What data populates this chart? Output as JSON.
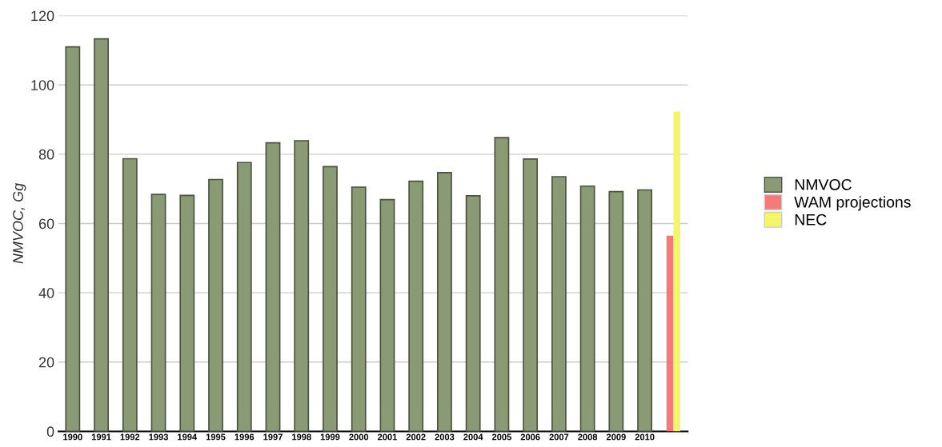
{
  "chart_data": {
    "type": "bar",
    "ylabel": "NMVOC, Gg",
    "categories": [
      "1990",
      "1991",
      "1992",
      "1993",
      "1994",
      "1995",
      "1996",
      "1997",
      "1998",
      "1999",
      "2000",
      "2001",
      "2002",
      "2003",
      "2004",
      "2005",
      "2006",
      "2007",
      "2008",
      "2009",
      "2010",
      null
    ],
    "series": [
      {
        "name": "NMVOC",
        "color": "#8a9a74",
        "values": [
          111.0,
          113.3,
          78.7,
          68.4,
          68.1,
          72.7,
          77.6,
          83.3,
          83.9,
          76.4,
          70.5,
          66.9,
          72.2,
          74.7,
          68.0,
          84.8,
          78.6,
          73.5,
          70.8,
          69.2,
          69.7,
          null
        ]
      },
      {
        "name": "WAM projections",
        "color": "#f47a7a",
        "values": [
          null,
          null,
          null,
          null,
          null,
          null,
          null,
          null,
          null,
          null,
          null,
          null,
          null,
          null,
          null,
          null,
          null,
          null,
          null,
          null,
          null,
          56.5
        ]
      },
      {
        "name": "NEC",
        "color": "#f5f56a",
        "values": [
          null,
          null,
          null,
          null,
          null,
          null,
          null,
          null,
          null,
          null,
          null,
          null,
          null,
          null,
          null,
          null,
          null,
          null,
          null,
          null,
          null,
          92.3
        ]
      }
    ],
    "ylim": [
      0,
      120
    ],
    "yticks": [
      0,
      20,
      40,
      60,
      80,
      100,
      120
    ],
    "grid": "y",
    "legend": "right"
  }
}
